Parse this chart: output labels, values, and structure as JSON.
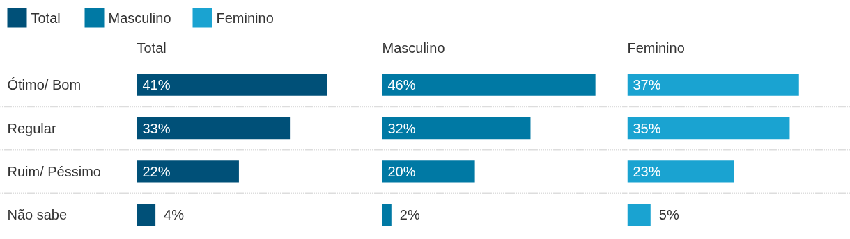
{
  "chart_data": [
    {
      "type": "bar",
      "orientation": "horizontal",
      "legend": "top",
      "grid": "y",
      "title": "Total",
      "categories": [
        "Ótimo/ Bom",
        "Regular",
        "Ruim/ Péssimo",
        "Não sabe"
      ],
      "series": [
        {
          "name": "Total",
          "color": "#005078",
          "values": [
            41,
            33,
            22,
            4
          ],
          "value_labels": [
            "41%",
            "33%",
            "22%",
            "4%"
          ]
        }
      ]
    },
    {
      "type": "bar",
      "orientation": "horizontal",
      "legend": "top",
      "grid": "y",
      "title": "Masculino",
      "categories": [
        null,
        null,
        null,
        null
      ],
      "series": [
        {
          "name": "Masculino",
          "color": "#0079a4",
          "values": [
            46,
            32,
            20,
            2
          ],
          "value_labels": [
            "46%",
            "32%",
            "20%",
            "2%"
          ]
        }
      ]
    },
    {
      "type": "bar",
      "orientation": "horizontal",
      "legend": "top",
      "grid": "y",
      "title": "Feminino",
      "categories": [
        null,
        null,
        null,
        null
      ],
      "series": [
        {
          "name": "Feminino",
          "color": "#1aa3d1",
          "values": [
            37,
            35,
            23,
            5
          ],
          "value_labels": [
            "37%",
            "35%",
            "23%",
            "5%"
          ]
        }
      ]
    }
  ]
}
